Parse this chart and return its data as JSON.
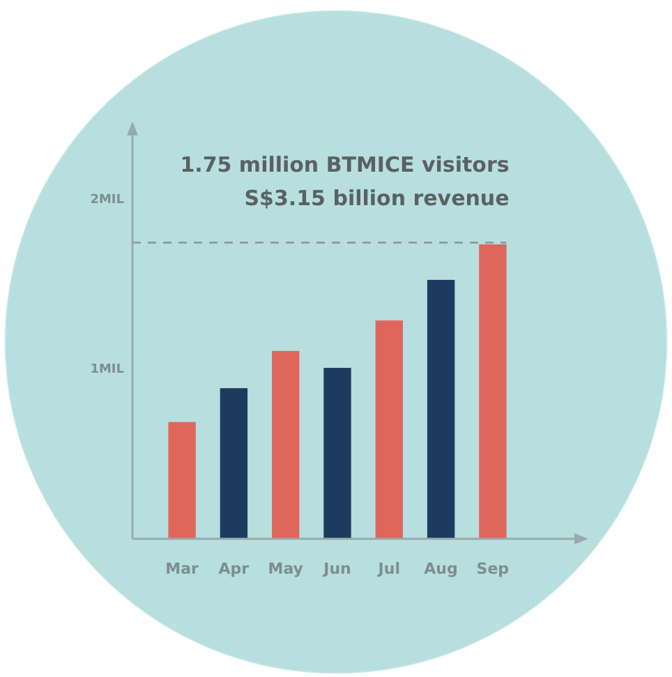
{
  "chart_data": {
    "type": "bar",
    "categories": [
      "Mar",
      "Apr",
      "May",
      "Jun",
      "Jul",
      "Aug",
      "Sep"
    ],
    "values": [
      0.69,
      0.89,
      1.11,
      1.01,
      1.29,
      1.53,
      1.74
    ],
    "colors": [
      "#e0665c",
      "#1d3b5e",
      "#e0665c",
      "#1d3b5e",
      "#e0665c",
      "#1d3b5e",
      "#e0665c"
    ],
    "ylim": [
      0,
      2.4
    ],
    "yticks": [
      {
        "value": 1,
        "label": "1MIL"
      },
      {
        "value": 2,
        "label": "2MIL"
      }
    ],
    "grid": false,
    "ref_lines": [
      {
        "axis": "y",
        "value": 1.75,
        "line_style": "dashed",
        "color": "#8a9a9c"
      }
    ],
    "annotations": [
      "1.75 million BTMICE visitors",
      "S$3.15 billion revenue"
    ]
  }
}
